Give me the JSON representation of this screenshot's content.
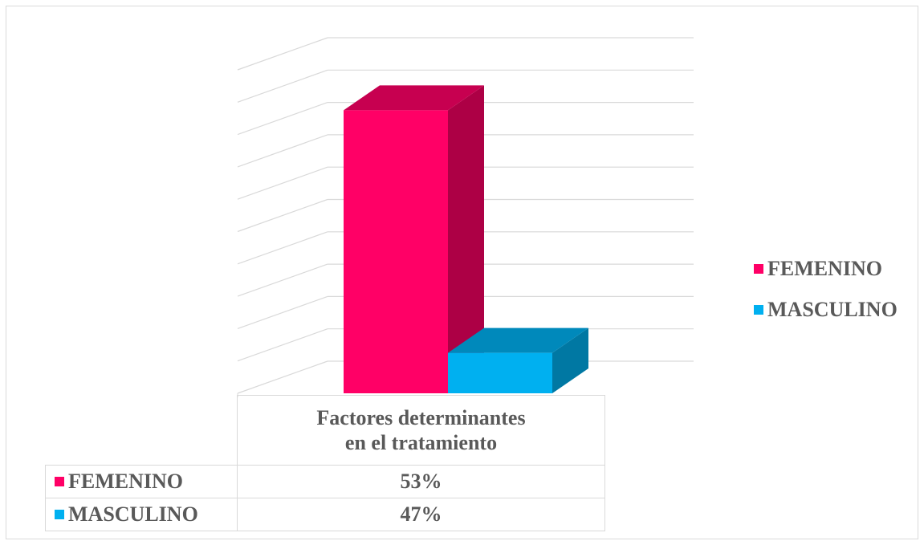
{
  "chart_data": {
    "type": "bar",
    "categories": [
      "Factores determinantes en el tratamiento"
    ],
    "series": [
      {
        "name": "FEMENINO",
        "values": [
          0.53
        ],
        "label": "53%",
        "color": "#ff0066"
      },
      {
        "name": "MASCULINO",
        "values": [
          0.47
        ],
        "label": "47%",
        "color": "#00b0f0"
      }
    ],
    "category_label_lines": [
      "Factores determinantes",
      "en el tratamiento"
    ],
    "title": "",
    "xlabel": "",
    "ylabel": "",
    "ylim": [
      0.46,
      0.54
    ],
    "grid": true,
    "style": "3d-column",
    "legend_position": "right",
    "data_table": true
  }
}
